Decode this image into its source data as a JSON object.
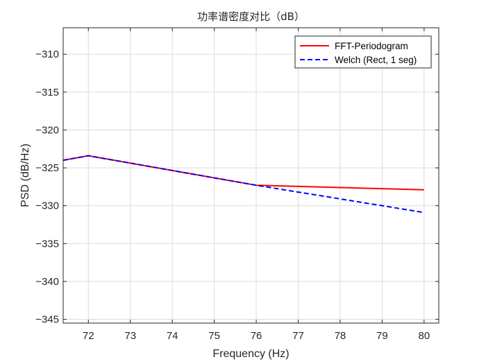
{
  "chart_data": {
    "type": "line",
    "title": "功率谱密度对比（dB）",
    "xlabel": "Frequency (Hz)",
    "ylabel": "PSD (dB/Hz)",
    "xlim": [
      71.4,
      80.35
    ],
    "ylim": [
      -345.5,
      -306.5
    ],
    "xticks": [
      72,
      73,
      74,
      75,
      76,
      77,
      78,
      79,
      80
    ],
    "yticks": [
      -310,
      -315,
      -320,
      -325,
      -330,
      -335,
      -340,
      -345
    ],
    "xtick_labels": [
      "72",
      "73",
      "74",
      "75",
      "76",
      "77",
      "78",
      "79",
      "80"
    ],
    "ytick_labels": [
      "−310",
      "−315",
      "−320",
      "−325",
      "−330",
      "−335",
      "−340",
      "−345"
    ],
    "grid": true,
    "legend_position": "top-right",
    "series": [
      {
        "name": "FFT-Periodogram",
        "color": "#ff0000",
        "style": "solid",
        "x": [
          71.4,
          72,
          76,
          80
        ],
        "y": [
          -324.0,
          -323.4,
          -327.3,
          -327.9
        ]
      },
      {
        "name": "Welch (Rect, 1 seg)",
        "color": "#0000ff",
        "style": "dashed",
        "x": [
          71.4,
          72,
          76,
          80
        ],
        "y": [
          -324.0,
          -323.4,
          -327.3,
          -330.9
        ]
      }
    ]
  }
}
